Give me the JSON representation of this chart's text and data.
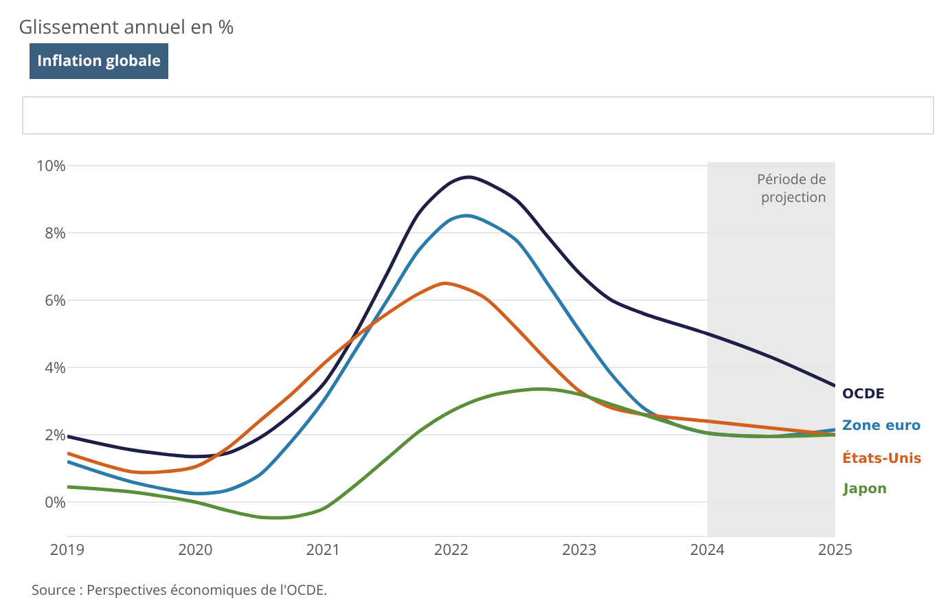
{
  "chart_data": {
    "type": "line",
    "title": "Glissement annuel en %",
    "annotations": [
      "Inflation globale",
      "Source : Perspectives économiques de l'OCDE."
    ],
    "xlim": [
      2019,
      2025
    ],
    "xticks": [
      2019,
      2020,
      2021,
      2022,
      2023,
      2024,
      2025
    ],
    "ylim": [
      -1,
      10.1
    ],
    "yticks": [
      {
        "value": 0,
        "label": "0%"
      },
      {
        "value": 2,
        "label": "2%"
      },
      {
        "value": 4,
        "label": "4%"
      },
      {
        "value": 6,
        "label": "6%"
      },
      {
        "value": 8,
        "label": "8%"
      },
      {
        "value": 10,
        "label": "10%"
      }
    ],
    "grid": "y",
    "legend": false,
    "marker": "none",
    "line_style": "solid",
    "bands": [
      {
        "axis": "x",
        "from": 2024,
        "to": 2025,
        "label": "Période de projection",
        "color": "#e9e9e9"
      }
    ],
    "series": [
      {
        "name": "OCDE",
        "color": "#1d1f47",
        "x": [
          2019,
          2019.5,
          2020,
          2020.25,
          2020.5,
          2020.75,
          2021,
          2021.25,
          2021.5,
          2021.75,
          2022,
          2022.15,
          2022.5,
          2022.75,
          2023,
          2023.25,
          2023.5,
          2024,
          2024.5,
          2025
        ],
        "values": [
          1.95,
          1.55,
          1.35,
          1.45,
          1.9,
          2.6,
          3.5,
          5.0,
          6.8,
          8.6,
          9.5,
          9.65,
          9.0,
          7.9,
          6.8,
          6.0,
          5.6,
          5.0,
          4.3,
          3.45
        ]
      },
      {
        "name": "Zone euro",
        "color": "#2a7aaa",
        "x": [
          2019,
          2019.5,
          2020,
          2020.25,
          2020.5,
          2020.75,
          2021,
          2021.25,
          2021.5,
          2021.75,
          2022,
          2022.15,
          2022.5,
          2022.75,
          2023,
          2023.25,
          2023.5,
          2023.75,
          2024,
          2024.5,
          2025
        ],
        "values": [
          1.2,
          0.6,
          0.25,
          0.35,
          0.8,
          1.8,
          3.0,
          4.5,
          6.0,
          7.5,
          8.4,
          8.5,
          7.8,
          6.5,
          5.1,
          3.8,
          2.8,
          2.3,
          2.05,
          1.95,
          2.15
        ]
      },
      {
        "name": "États-Unis",
        "color": "#d35f1e",
        "x": [
          2019,
          2019.5,
          2019.75,
          2020,
          2020.25,
          2020.5,
          2020.75,
          2021,
          2021.25,
          2021.5,
          2021.75,
          2021.95,
          2022.25,
          2022.5,
          2022.75,
          2023,
          2023.25,
          2023.5,
          2024,
          2024.5,
          2025
        ],
        "values": [
          1.45,
          0.9,
          0.9,
          1.05,
          1.6,
          2.4,
          3.2,
          4.1,
          4.9,
          5.6,
          6.2,
          6.5,
          6.1,
          5.2,
          4.2,
          3.3,
          2.8,
          2.6,
          2.4,
          2.2,
          2.0
        ]
      },
      {
        "name": "Japon",
        "color": "#5a8f3a",
        "x": [
          2019,
          2019.5,
          2020,
          2020.25,
          2020.5,
          2020.75,
          2021,
          2021.25,
          2021.5,
          2021.75,
          2022,
          2022.25,
          2022.5,
          2022.75,
          2023,
          2023.25,
          2023.5,
          2024,
          2024.5,
          2025
        ],
        "values": [
          0.45,
          0.3,
          0.0,
          -0.25,
          -0.45,
          -0.45,
          -0.2,
          0.5,
          1.3,
          2.1,
          2.7,
          3.1,
          3.3,
          3.35,
          3.2,
          2.9,
          2.6,
          2.05,
          1.95,
          2.0
        ]
      }
    ]
  }
}
